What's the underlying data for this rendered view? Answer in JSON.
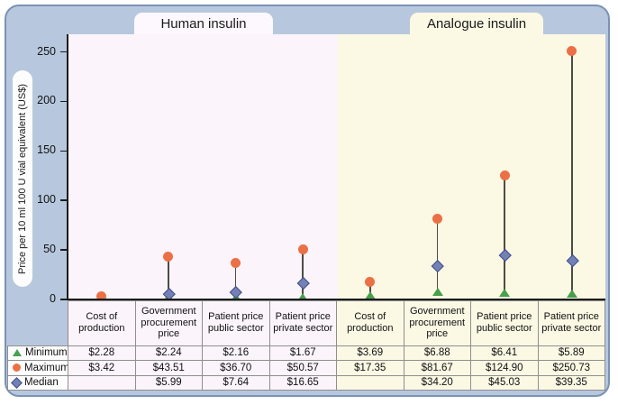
{
  "tabs": {
    "human": "Human insulin",
    "analogue": "Analogue insulin"
  },
  "y_axis": {
    "label": "Price per 10 ml 100 U vial equivalent (US$)"
  },
  "colors": {
    "panel_fill": "#b7c8de",
    "panel_border": "#7b92b5",
    "human_background": "#fbf4fb",
    "analogue_background": "#fbf8e4",
    "minimum_green": "#47a04b",
    "maximum_orange": "#ec7045",
    "median_blue": "#7580b6",
    "median_blue_border": "#3e4e85"
  },
  "chart_data": {
    "type": "lollipop-range",
    "title": "",
    "xlabel": "",
    "ylabel": "Price per 10 ml 100 U vial equivalent (US$)",
    "ylim": [
      0,
      250
    ],
    "yticks": [
      0,
      50,
      100,
      150,
      200,
      250
    ],
    "grid": false,
    "legend_position": "table-left",
    "groups": [
      {
        "name": "Human insulin",
        "background": "#fbf4fb",
        "categories": [
          "Cost of production",
          "Government procurement price",
          "Patient price public sector",
          "Patient price private sector"
        ],
        "series": [
          {
            "name": "Minimum",
            "marker": "triangle",
            "color": "#47a04b",
            "values": [
              2.28,
              2.24,
              2.16,
              1.67
            ]
          },
          {
            "name": "Maximum",
            "marker": "circle",
            "color": "#ec7045",
            "values": [
              3.42,
              43.51,
              36.7,
              50.57
            ]
          },
          {
            "name": "Median",
            "marker": "diamond",
            "color": "#7580b6",
            "values": [
              null,
              5.99,
              7.64,
              16.65
            ]
          }
        ]
      },
      {
        "name": "Analogue insulin",
        "background": "#fbf8e4",
        "categories": [
          "Cost of production",
          "Government procurement price",
          "Patient price public sector",
          "Patient price private sector"
        ],
        "series": [
          {
            "name": "Minimum",
            "marker": "triangle",
            "color": "#47a04b",
            "values": [
              3.69,
              6.88,
              6.41,
              5.89
            ]
          },
          {
            "name": "Maximum",
            "marker": "circle",
            "color": "#ec7045",
            "values": [
              17.35,
              81.67,
              124.9,
              250.73
            ]
          },
          {
            "name": "Median",
            "marker": "diamond",
            "color": "#7580b6",
            "values": [
              null,
              34.2,
              45.03,
              39.35
            ]
          }
        ]
      }
    ]
  },
  "table": {
    "column_headers": [
      "Cost of production",
      "Government procurement price",
      "Patient price public sector",
      "Patient price private sector",
      "Cost of production",
      "Government procurement price",
      "Patient price public sector",
      "Patient price private sector"
    ],
    "rows": [
      {
        "label": "Minimum",
        "marker": "triangle",
        "values": [
          "$2.28",
          "$2.24",
          "$2.16",
          "$1.67",
          "$3.69",
          "$6.88",
          "$6.41",
          "$5.89"
        ]
      },
      {
        "label": "Maximum",
        "marker": "circle",
        "values": [
          "$3.42",
          "$43.51",
          "$36.70",
          "$50.57",
          "$17.35",
          "$81.67",
          "$124.90",
          "$250.73"
        ]
      },
      {
        "label": "Median",
        "marker": "diamond",
        "values": [
          "",
          "$5.99",
          "$7.64",
          "$16.65",
          "",
          "$34.20",
          "$45.03",
          "$39.35"
        ]
      }
    ]
  }
}
